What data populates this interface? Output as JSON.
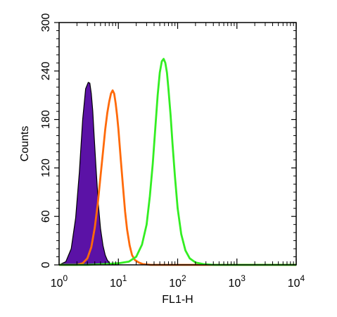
{
  "chart_data": {
    "type": "area",
    "title": "",
    "xlabel": "FL1-H",
    "ylabel": "Counts",
    "x_scale": "log",
    "xlim": [
      1,
      10000
    ],
    "ylim": [
      0,
      300
    ],
    "x_ticks": [
      {
        "value": 1,
        "base": "10",
        "exp": "0"
      },
      {
        "value": 10,
        "base": "10",
        "exp": "1"
      },
      {
        "value": 100,
        "base": "10",
        "exp": "2"
      },
      {
        "value": 1000,
        "base": "10",
        "exp": "3"
      },
      {
        "value": 10000,
        "base": "10",
        "exp": "4"
      }
    ],
    "y_ticks": [
      "0",
      "60",
      "120",
      "180",
      "240",
      "300"
    ],
    "grid": false,
    "series": [
      {
        "color": "#5B12A6",
        "style": "filled",
        "x": [
          1.0,
          1.3,
          1.6,
          1.9,
          2.2,
          2.5,
          2.8,
          3.1,
          3.3,
          3.5,
          3.7,
          3.9,
          4.2,
          4.6,
          5.0,
          5.5,
          6.0,
          6.5,
          7.0,
          7.5,
          8.0,
          9.0,
          10.0
        ],
        "y": [
          0,
          4,
          20,
          58,
          115,
          180,
          218,
          226,
          225,
          212,
          190,
          160,
          120,
          75,
          45,
          24,
          12,
          6,
          3,
          1,
          0,
          0,
          0
        ]
      },
      {
        "color": "#FF6A0A",
        "style": "line",
        "x": [
          1.0,
          2.0,
          2.5,
          3.0,
          3.5,
          4.0,
          4.5,
          5.0,
          5.5,
          6.0,
          6.5,
          7.0,
          7.5,
          8.0,
          8.5,
          9.0,
          9.5,
          10.0,
          11.0,
          12.0,
          13.0,
          14.0,
          15.5,
          17.0,
          19.0,
          22.0,
          26.0,
          35.0,
          60.0,
          150.0,
          1000.0,
          10000.0
        ],
        "y": [
          0,
          0,
          2,
          8,
          22,
          46,
          76,
          110,
          140,
          168,
          188,
          202,
          212,
          216,
          212,
          200,
          185,
          168,
          130,
          96,
          66,
          44,
          24,
          12,
          6,
          3,
          1,
          0,
          0,
          0,
          0,
          0
        ]
      },
      {
        "color": "#33EE22",
        "style": "line",
        "x": [
          1.0,
          3.0,
          6.0,
          10.0,
          15.0,
          20.0,
          25.0,
          30.0,
          34.0,
          38.0,
          42.0,
          46.0,
          50.0,
          54.0,
          58.0,
          62.0,
          66.0,
          70.0,
          76.0,
          82.0,
          90.0,
          100.0,
          115.0,
          135.0,
          160.0,
          200.0,
          270.0,
          400.0,
          1000.0,
          10000.0
        ],
        "y": [
          0,
          0,
          1,
          2,
          4,
          10,
          25,
          50,
          85,
          125,
          170,
          210,
          238,
          252,
          255,
          250,
          238,
          218,
          185,
          150,
          110,
          70,
          38,
          18,
          8,
          3,
          1,
          0,
          0,
          0
        ]
      }
    ]
  }
}
